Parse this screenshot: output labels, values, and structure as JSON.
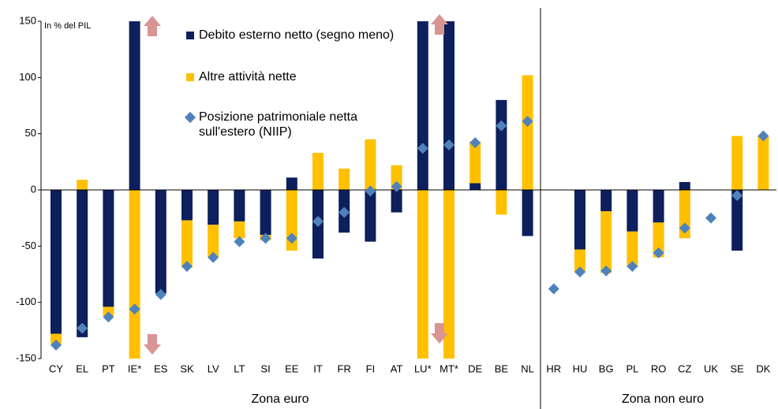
{
  "chart_data": {
    "type": "bar",
    "stacked": true,
    "annotation": "In % del PIL",
    "groups": [
      {
        "label": "Zona euro"
      },
      {
        "label": "Zona non euro"
      }
    ],
    "categories": [
      "CY",
      "EL",
      "PT",
      "IE*",
      "ES",
      "SK",
      "LV",
      "LT",
      "SI",
      "EE",
      "IT",
      "FR",
      "FI",
      "AT",
      "LU*",
      "MT*",
      "DE",
      "BE",
      "NL",
      "HR",
      "HU",
      "BG",
      "PL",
      "RO",
      "CZ",
      "UK",
      "SE",
      "DK"
    ],
    "series": [
      {
        "name": "Debito esterno netto (segno meno)",
        "type": "bar",
        "color": "#0d1f5c",
        "values": [
          -128,
          -131,
          -104,
          150,
          -92,
          -27,
          -31,
          -28,
          -40,
          11,
          -61,
          -38,
          -46,
          -20,
          150,
          150,
          6,
          80,
          -41,
          null,
          -53,
          -19,
          -37,
          -29,
          7,
          null,
          -54,
          null
        ]
      },
      {
        "name": "Altre attività nette",
        "type": "bar",
        "color": "#ffc000",
        "values": [
          -9,
          9,
          -8,
          -150,
          null,
          -42,
          -29,
          -15,
          -5,
          -54,
          33,
          19,
          45,
          22,
          -150,
          -150,
          37,
          -22,
          102,
          null,
          -20,
          -55,
          -32,
          -31,
          -43,
          null,
          48,
          48
        ]
      },
      {
        "name": "Posizione patrimoniale netta sull'estero (NIIP)",
        "type": "scatter",
        "color": "#4f81bd",
        "values": [
          -138,
          -123,
          -113,
          -106,
          -93,
          -68,
          -60,
          -46,
          -43,
          -43,
          -28,
          -20,
          -1,
          3,
          37,
          40,
          42,
          57,
          61,
          -88,
          -73,
          -72,
          -68,
          -56,
          -34,
          -25,
          -5,
          48
        ]
      }
    ],
    "ylim": [
      -150,
      150
    ],
    "yticks": [
      -150,
      -100,
      -50,
      0,
      50,
      100,
      150
    ]
  }
}
